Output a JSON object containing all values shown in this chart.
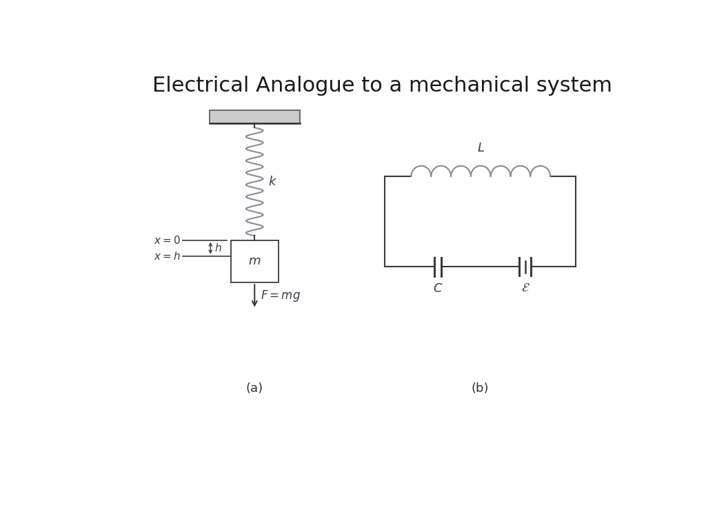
{
  "title": "Electrical Analogue to a mechanical system",
  "title_fontsize": 22,
  "title_color": "#1a1a1a",
  "bg_color": "#ffffff",
  "line_color": "#3a3a3a",
  "text_color": "#3a3a4a",
  "label_a": "(a)",
  "label_b": "(b)",
  "spring_color": "#8a8a9a"
}
